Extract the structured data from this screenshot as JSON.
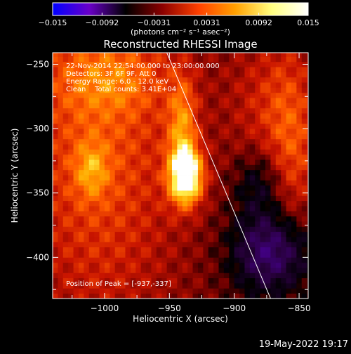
{
  "chart_data": {
    "type": "heatmap",
    "title": "Reconstructed RHESSI Image",
    "xlabel": "Heliocentric X (arcsec)",
    "ylabel": "Heliocentric Y (arcsec)",
    "xlim": [
      -1040,
      -843
    ],
    "ylim": [
      -432,
      -241
    ],
    "x_ticks": [
      -1000,
      -950,
      -900,
      -850
    ],
    "x_tick_labels": [
      "−1000",
      "−950",
      "−900",
      "−850"
    ],
    "y_ticks": [
      -250,
      -300,
      -350,
      -400
    ],
    "y_tick_labels": [
      "−250",
      "−300",
      "−350",
      "−400"
    ],
    "colorbar": {
      "range": [
        -0.015,
        0.015
      ],
      "ticks": [
        -0.015,
        -0.0092,
        -0.0031,
        0.0031,
        0.0092,
        0.015
      ],
      "tick_labels": [
        "−0.015",
        "−0.0092",
        "−0.0031",
        "0.0031",
        "0.0092",
        "0.015"
      ],
      "units": "(photons cm⁻² s⁻¹ asec⁻²)",
      "colors": [
        "#0000ff",
        "#6a00c8",
        "#000000",
        "#8b0000",
        "#ff4000",
        "#ffa000",
        "#ffff80",
        "#ffffff"
      ]
    },
    "annotations": [
      "22-Nov-2014 22:54:00.000 to 23:00:00.000",
      "Detectors: 3F 6F 9F, Att 0",
      "Energy Range: 6.0 - 12.0 keV",
      "Clean    Total counts: 3.41E+04"
    ],
    "peak_label": "Position of Peak = [-937,-337]",
    "peak": [
      -937,
      -337
    ],
    "limb_line": [
      [
        -952,
        -241
      ],
      [
        -872,
        -432
      ]
    ],
    "sources": [
      {
        "x": -937,
        "y": -337,
        "sx": 9,
        "sy": 15,
        "amp": 0.014
      },
      {
        "x": -940,
        "y": -300,
        "sx": 8,
        "sy": 28,
        "amp": 0.0065
      },
      {
        "x": -1005,
        "y": -300,
        "sx": 45,
        "sy": 110,
        "amp": 0.0055
      },
      {
        "x": -1010,
        "y": -332,
        "sx": 9,
        "sy": 15,
        "amp": 0.0045
      },
      {
        "x": -995,
        "y": -262,
        "sx": 30,
        "sy": 18,
        "amp": 0.003
      },
      {
        "x": -875,
        "y": -280,
        "sx": 22,
        "sy": 40,
        "amp": 0.003
      },
      {
        "x": -855,
        "y": -320,
        "sx": 14,
        "sy": 55,
        "amp": 0.0045
      },
      {
        "x": -880,
        "y": -340,
        "sx": 14,
        "sy": 18,
        "amp": -0.004
      },
      {
        "x": -870,
        "y": -395,
        "sx": 22,
        "sy": 24,
        "amp": -0.008
      }
    ]
  },
  "footer": {
    "date": "19-May-2022 19:17"
  }
}
